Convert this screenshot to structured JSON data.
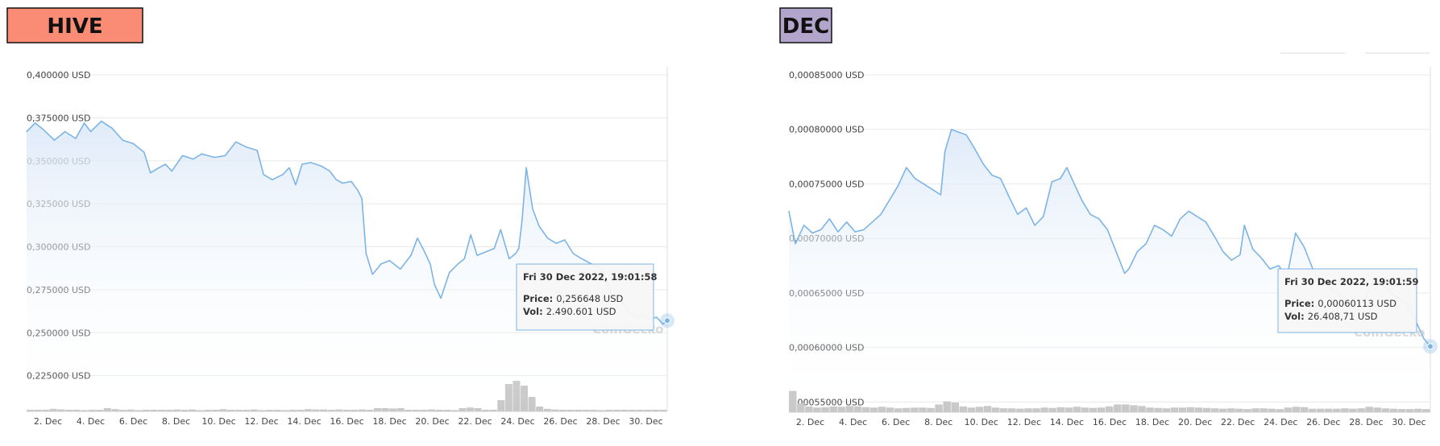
{
  "colors": {
    "hive_badge": "#fa8c76",
    "dec_badge": "#b2a5cc",
    "line": "#7cb4e6",
    "area_top": "#dce9f8",
    "volume": "#c8c8c8",
    "grid": "#e8e8e8"
  },
  "watermark": "CoinGecko",
  "chart_data": [
    {
      "type": "line",
      "badge": "HIVE",
      "ylim": [
        0.2,
        0.4
      ],
      "yticks": [
        "0,400000 USD",
        "0,375000 USD",
        "0,350000 USD",
        "0,325000 USD",
        "0,300000 USD",
        "0,275000 USD",
        "0,250000 USD",
        "0,225000 USD"
      ],
      "ytick_values": [
        0.4,
        0.375,
        0.35,
        0.325,
        0.3,
        0.275,
        0.25,
        0.225
      ],
      "xlim": [
        1,
        31
      ],
      "xticks": [
        "2. Dec",
        "4. Dec",
        "6. Dec",
        "8. Dec",
        "10. Dec",
        "12. Dec",
        "14. Dec",
        "16. Dec",
        "18. Dec",
        "20. Dec",
        "22. Dec",
        "24. Dec",
        "26. Dec",
        "28. Dec",
        "30. Dec"
      ],
      "xtick_values": [
        2,
        4,
        6,
        8,
        10,
        12,
        14,
        16,
        18,
        20,
        22,
        24,
        26,
        28,
        30
      ],
      "x": [
        1.0,
        1.4,
        1.8,
        2.3,
        2.8,
        3.3,
        3.7,
        4.0,
        4.5,
        5.0,
        5.5,
        6.0,
        6.5,
        6.8,
        7.2,
        7.5,
        7.8,
        8.3,
        8.8,
        9.2,
        9.8,
        10.3,
        10.8,
        11.3,
        11.8,
        12.1,
        12.5,
        13.0,
        13.3,
        13.6,
        13.9,
        14.3,
        14.8,
        15.2,
        15.5,
        15.8,
        16.2,
        16.5,
        16.7,
        16.9,
        17.2,
        17.6,
        18.0,
        18.5,
        19.0,
        19.3,
        19.6,
        19.9,
        20.1,
        20.4,
        20.8,
        21.2,
        21.5,
        21.8,
        22.1,
        22.5,
        22.9,
        23.2,
        23.6,
        23.9,
        24.05,
        24.2,
        24.4,
        24.7,
        25.0,
        25.4,
        25.8,
        26.2,
        26.6,
        27.0,
        27.3,
        27.6,
        27.9,
        28.1,
        28.4,
        28.8,
        29.2,
        29.6,
        29.9,
        30.2,
        30.5,
        30.8,
        31.0
      ],
      "y": [
        0.367,
        0.372,
        0.368,
        0.362,
        0.367,
        0.363,
        0.372,
        0.367,
        0.373,
        0.369,
        0.362,
        0.36,
        0.355,
        0.343,
        0.346,
        0.348,
        0.344,
        0.353,
        0.351,
        0.354,
        0.352,
        0.353,
        0.361,
        0.358,
        0.356,
        0.342,
        0.339,
        0.342,
        0.346,
        0.336,
        0.348,
        0.349,
        0.347,
        0.344,
        0.339,
        0.337,
        0.338,
        0.333,
        0.328,
        0.296,
        0.284,
        0.29,
        0.292,
        0.287,
        0.295,
        0.305,
        0.298,
        0.29,
        0.278,
        0.27,
        0.285,
        0.29,
        0.293,
        0.307,
        0.295,
        0.297,
        0.299,
        0.31,
        0.293,
        0.296,
        0.299,
        0.315,
        0.346,
        0.322,
        0.312,
        0.305,
        0.302,
        0.304,
        0.296,
        0.293,
        0.291,
        0.289,
        0.287,
        0.282,
        0.272,
        0.27,
        0.262,
        0.259,
        0.26,
        0.258,
        0.259,
        0.255,
        0.257
      ],
      "volume": [
        0.05,
        0.05,
        0.05,
        0.08,
        0.06,
        0.05,
        0.05,
        0.04,
        0.05,
        0.05,
        0.1,
        0.07,
        0.05,
        0.06,
        0.04,
        0.05,
        0.05,
        0.05,
        0.05,
        0.06,
        0.05,
        0.06,
        0.04,
        0.05,
        0.05,
        0.07,
        0.05,
        0.05,
        0.05,
        0.06,
        0.04,
        0.05,
        0.05,
        0.04,
        0.05,
        0.05,
        0.07,
        0.06,
        0.06,
        0.05,
        0.06,
        0.05,
        0.05,
        0.06,
        0.05,
        0.1,
        0.1,
        0.09,
        0.1,
        0.05,
        0.05,
        0.05,
        0.06,
        0.05,
        0.05,
        0.04,
        0.1,
        0.12,
        0.1,
        0.05,
        0.05,
        0.35,
        0.85,
        0.95,
        0.8,
        0.45,
        0.15,
        0.08,
        0.06,
        0.05,
        0.05,
        0.05,
        0.05,
        0.05,
        0.04,
        0.05,
        0.05,
        0.05,
        0.05,
        0.05,
        0.05,
        0.05,
        0.05
      ],
      "tooltip": {
        "date": "Fri 30 Dec 2022, 19:01:58",
        "price_label": "Price:",
        "price_value": "0,256648 USD",
        "vol_label": "Vol:",
        "vol_value": "2.490.601 USD"
      },
      "grid": true
    },
    {
      "type": "line",
      "badge": "DEC",
      "ylim": [
        0.0005,
        0.00085
      ],
      "yticks": [
        "0,00085000 USD",
        "0,00080000 USD",
        "0,00075000 USD",
        "0,00070000 USD",
        "0,00065000 USD",
        "0,00060000 USD",
        "0,00055000 USD"
      ],
      "ytick_values": [
        0.00085,
        0.0008,
        0.00075,
        0.0007,
        0.00065,
        0.0006,
        0.00055
      ],
      "xlim": [
        1,
        31
      ],
      "xticks": [
        "2. Dec",
        "4. Dec",
        "6. Dec",
        "8. Dec",
        "10. Dec",
        "12. Dec",
        "14. Dec",
        "16. Dec",
        "18. Dec",
        "20. Dec",
        "22. Dec",
        "24. Dec",
        "26. Dec",
        "28. Dec",
        "30. Dec"
      ],
      "xtick_values": [
        2,
        4,
        6,
        8,
        10,
        12,
        14,
        16,
        18,
        20,
        22,
        24,
        26,
        28,
        30
      ],
      "x": [
        1.0,
        1.3,
        1.7,
        2.1,
        2.5,
        2.9,
        3.3,
        3.7,
        4.1,
        4.5,
        4.9,
        5.3,
        5.7,
        6.1,
        6.5,
        6.9,
        7.3,
        7.7,
        8.1,
        8.3,
        8.6,
        9.0,
        9.3,
        9.7,
        10.1,
        10.5,
        10.9,
        11.3,
        11.7,
        12.1,
        12.5,
        12.9,
        13.3,
        13.7,
        14.0,
        14.3,
        14.7,
        15.1,
        15.5,
        15.9,
        16.3,
        16.7,
        16.9,
        17.3,
        17.7,
        18.1,
        18.5,
        18.9,
        19.3,
        19.7,
        20.1,
        20.5,
        20.9,
        21.3,
        21.7,
        22.1,
        22.3,
        22.7,
        23.1,
        23.5,
        23.9,
        24.3,
        24.7,
        25.1,
        25.5,
        25.9,
        26.3,
        26.7,
        27.1,
        27.5,
        27.9,
        28.3,
        28.7,
        29.1,
        29.5,
        29.9,
        30.3,
        30.7,
        31.0
      ],
      "y": [
        0.000725,
        0.000695,
        0.000712,
        0.000705,
        0.000708,
        0.000718,
        0.000706,
        0.000715,
        0.000706,
        0.000708,
        0.000715,
        0.000722,
        0.000735,
        0.000748,
        0.000765,
        0.000755,
        0.00075,
        0.000745,
        0.00074,
        0.00078,
        0.0008,
        0.000797,
        0.000795,
        0.000782,
        0.000768,
        0.000758,
        0.000755,
        0.000738,
        0.000722,
        0.000728,
        0.000712,
        0.00072,
        0.000752,
        0.000755,
        0.000765,
        0.000752,
        0.000735,
        0.000722,
        0.000718,
        0.000708,
        0.000688,
        0.000668,
        0.000672,
        0.000688,
        0.000695,
        0.000712,
        0.000708,
        0.000702,
        0.000718,
        0.000725,
        0.00072,
        0.000715,
        0.000702,
        0.000688,
        0.00068,
        0.000685,
        0.000712,
        0.00069,
        0.000682,
        0.000672,
        0.000675,
        0.000665,
        0.000705,
        0.000692,
        0.000672,
        0.000658,
        0.000655,
        0.000648,
        0.000645,
        0.00064,
        0.000642,
        0.00066,
        0.000658,
        0.000652,
        0.000645,
        0.00064,
        0.000625,
        0.000608,
        0.000601
      ],
      "volume": [
        0.55,
        0.22,
        0.15,
        0.12,
        0.13,
        0.15,
        0.14,
        0.16,
        0.15,
        0.13,
        0.12,
        0.14,
        0.12,
        0.1,
        0.11,
        0.12,
        0.12,
        0.11,
        0.2,
        0.28,
        0.25,
        0.15,
        0.12,
        0.14,
        0.16,
        0.12,
        0.1,
        0.1,
        0.09,
        0.1,
        0.1,
        0.12,
        0.11,
        0.13,
        0.12,
        0.14,
        0.12,
        0.11,
        0.12,
        0.15,
        0.2,
        0.2,
        0.18,
        0.16,
        0.12,
        0.11,
        0.1,
        0.12,
        0.12,
        0.13,
        0.12,
        0.11,
        0.1,
        0.09,
        0.1,
        0.09,
        0.08,
        0.1,
        0.1,
        0.09,
        0.08,
        0.12,
        0.14,
        0.13,
        0.09,
        0.09,
        0.09,
        0.09,
        0.1,
        0.09,
        0.1,
        0.14,
        0.12,
        0.1,
        0.09,
        0.08,
        0.08,
        0.09,
        0.08
      ],
      "tooltip": {
        "date": "Fri 30 Dec 2022, 19:01:59",
        "price_label": "Price:",
        "price_value": "0,00060113 USD",
        "vol_label": "Vol:",
        "vol_value": "26.408,71 USD"
      },
      "grid": true
    }
  ]
}
